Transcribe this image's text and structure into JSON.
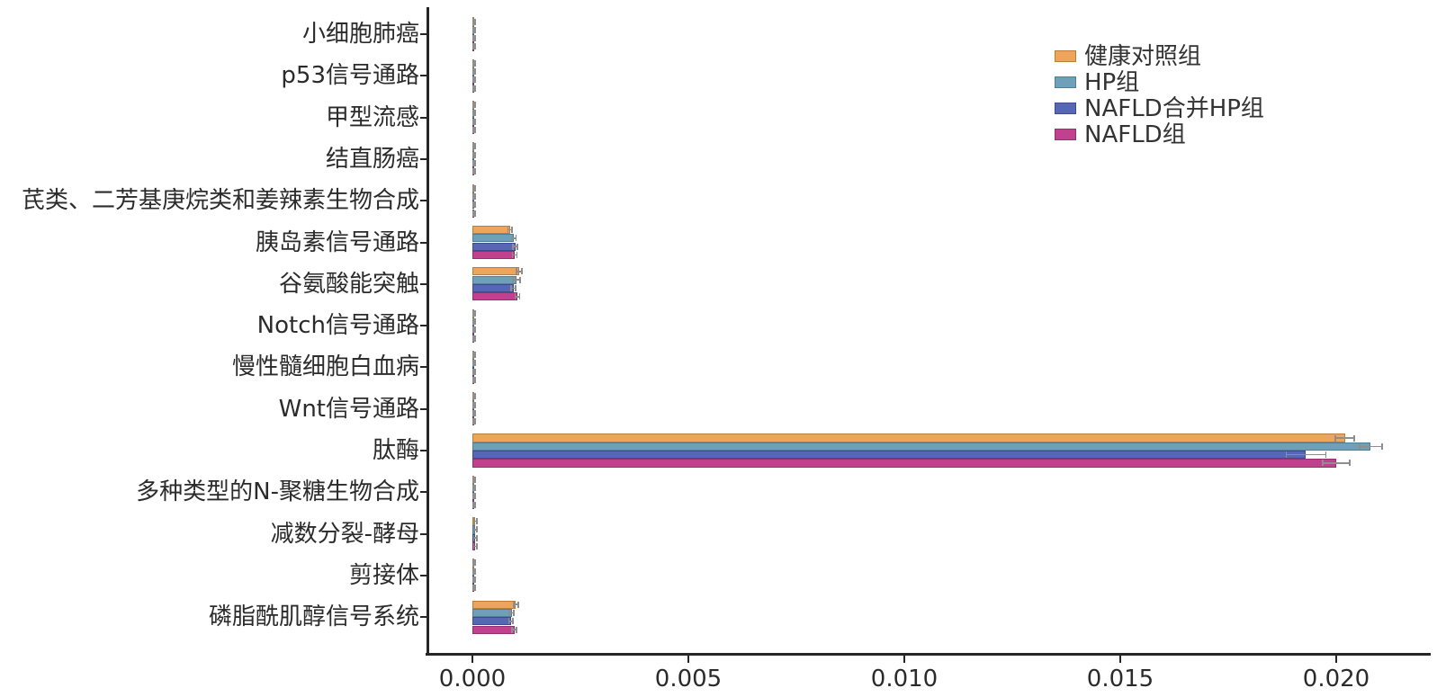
{
  "chart_data": {
    "type": "bar",
    "orientation": "horizontal",
    "title": "",
    "xlabel": "",
    "ylabel": "",
    "grid": false,
    "legend_position": "upper right",
    "xlim": [
      0,
      0.0222
    ],
    "xticks": [
      0,
      0.005,
      0.01,
      0.015,
      0.02
    ],
    "xtick_labels": [
      "0.000",
      "0.005",
      "0.010",
      "0.015",
      "0.020"
    ],
    "categories": [
      "小细胞肺癌",
      "p53信号通路",
      "甲型流感",
      "结直肠癌",
      "芪类、二芳基庚烷类和姜辣素生物合成",
      "胰岛素信号通路",
      "谷氨酸能突触",
      "Notch信号通路",
      "慢性髓细胞白血病",
      "Wnt信号通路",
      "肽酶",
      "多种类型的N-聚糖生物合成",
      "减数分裂-酵母",
      "剪接体",
      "磷脂酰肌醇信号系统"
    ],
    "series": [
      {
        "name": "健康对照组",
        "color": "#EDA45C",
        "edge_color": "#b97e3c",
        "values": [
          4e-05,
          4e-05,
          4e-05,
          4e-05,
          4e-05,
          0.00087,
          0.00108,
          4e-05,
          4e-05,
          4e-05,
          0.0202,
          4e-05,
          7e-05,
          4e-05,
          0.00101
        ],
        "errors": [
          2e-05,
          2e-05,
          2e-05,
          2e-05,
          2e-05,
          5e-05,
          6e-05,
          2e-05,
          2e-05,
          2e-05,
          0.00022,
          2e-05,
          4e-05,
          2e-05,
          5e-05
        ]
      },
      {
        "name": "HP组",
        "color": "#6FA0BA",
        "edge_color": "#517d95",
        "values": [
          4e-05,
          4e-05,
          4e-05,
          4e-05,
          4e-05,
          0.00096,
          0.00102,
          4e-05,
          4e-05,
          4e-05,
          0.0208,
          4e-05,
          7e-05,
          4e-05,
          0.00091
        ],
        "errors": [
          2e-05,
          2e-05,
          2e-05,
          2e-05,
          2e-05,
          5e-05,
          8e-05,
          2e-05,
          2e-05,
          2e-05,
          0.00026,
          2e-05,
          4e-05,
          2e-05,
          5e-05
        ]
      },
      {
        "name": "NAFLD合并HP组",
        "color": "#5667B5",
        "edge_color": "#3e4b90",
        "values": [
          4e-05,
          4e-05,
          4e-05,
          4e-05,
          4e-05,
          0.00099,
          0.00095,
          4e-05,
          4e-05,
          4e-05,
          0.0193,
          4e-05,
          7e-05,
          4e-05,
          0.00089
        ],
        "errors": [
          2e-05,
          2e-05,
          2e-05,
          2e-05,
          2e-05,
          5e-05,
          5e-05,
          2e-05,
          2e-05,
          2e-05,
          0.00046,
          2e-05,
          4e-05,
          2e-05,
          5e-05
        ]
      },
      {
        "name": "NAFLD组",
        "color": "#C2418F",
        "edge_color": "#962f6e",
        "values": [
          4e-05,
          4e-05,
          4e-05,
          4e-05,
          4e-05,
          0.00098,
          0.00104,
          4e-05,
          4e-05,
          4e-05,
          0.02,
          4e-05,
          7e-05,
          4e-05,
          0.00097
        ],
        "errors": [
          2e-05,
          2e-05,
          2e-05,
          2e-05,
          2e-05,
          5e-05,
          5e-05,
          2e-05,
          2e-05,
          2e-05,
          0.00031,
          2e-05,
          4e-05,
          2e-05,
          5e-05
        ]
      }
    ]
  }
}
